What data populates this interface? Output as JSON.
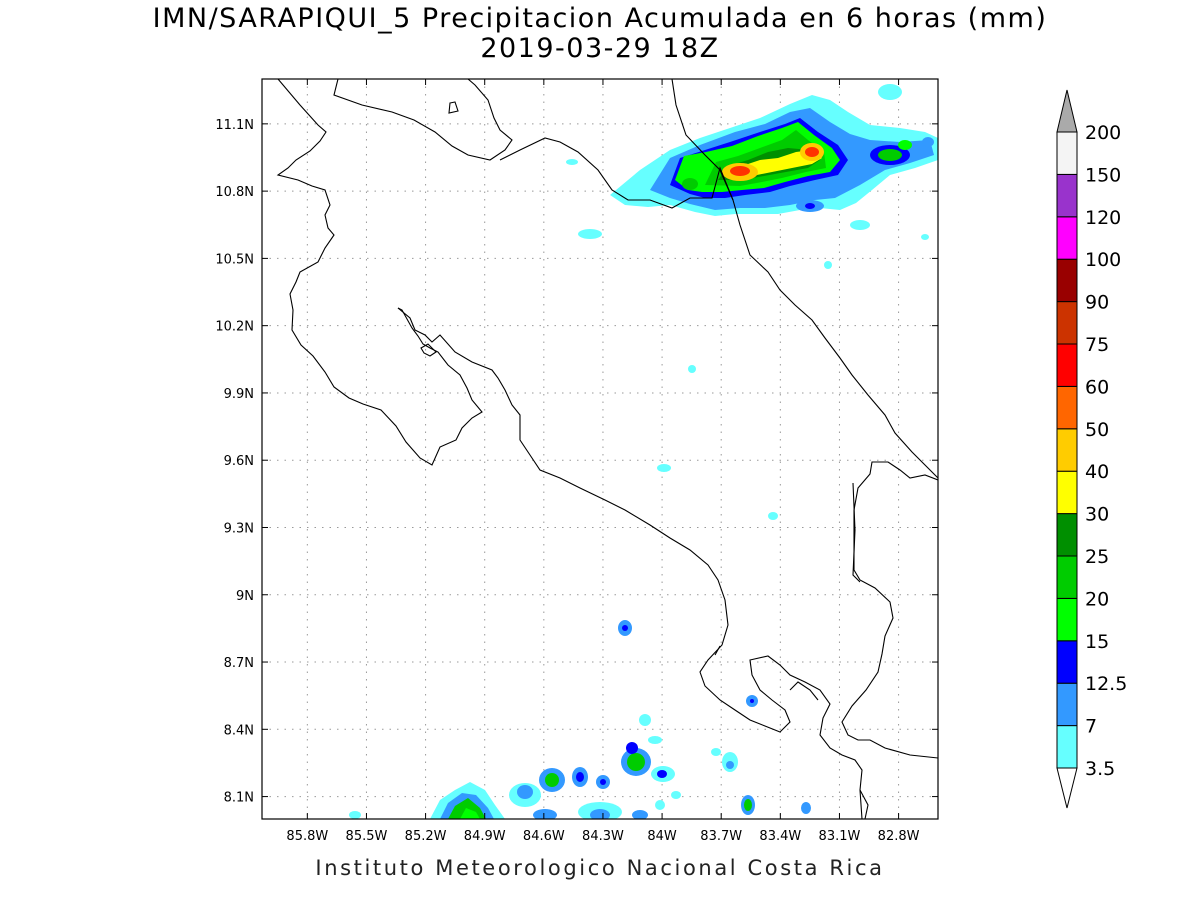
{
  "title": {
    "line1": "IMN/SARAPIQUI_5 Precipitacion Acumulada en 6 horas (mm)",
    "line2": "2019-03-29 18Z"
  },
  "footer": "Instituto Meteorologico Nacional Costa Rica",
  "map": {
    "lon_range": [
      -86.03,
      -82.6
    ],
    "lat_range": [
      8.0,
      11.3
    ],
    "lon_ticks": [
      {
        "value": -85.8,
        "label": "85.8W"
      },
      {
        "value": -85.5,
        "label": "85.5W"
      },
      {
        "value": -85.2,
        "label": "85.2W"
      },
      {
        "value": -84.9,
        "label": "84.9W"
      },
      {
        "value": -84.6,
        "label": "84.6W"
      },
      {
        "value": -84.3,
        "label": "84.3W"
      },
      {
        "value": -84.0,
        "label": "84W"
      },
      {
        "value": -83.7,
        "label": "83.7W"
      },
      {
        "value": -83.4,
        "label": "83.4W"
      },
      {
        "value": -83.1,
        "label": "83.1W"
      },
      {
        "value": -82.8,
        "label": "82.8W"
      }
    ],
    "lat_ticks": [
      {
        "value": 8.1,
        "label": "8.1N"
      },
      {
        "value": 8.4,
        "label": "8.4N"
      },
      {
        "value": 8.7,
        "label": "8.7N"
      },
      {
        "value": 9.0,
        "label": "9N"
      },
      {
        "value": 9.3,
        "label": "9.3N"
      },
      {
        "value": 9.6,
        "label": "9.6N"
      },
      {
        "value": 9.9,
        "label": "9.9N"
      },
      {
        "value": 10.2,
        "label": "10.2N"
      },
      {
        "value": 10.5,
        "label": "10.5N"
      },
      {
        "value": 10.8,
        "label": "10.8N"
      },
      {
        "value": 11.1,
        "label": "11.1N"
      }
    ],
    "grid": "dotted"
  },
  "colorbar": {
    "levels": [
      {
        "label": "3.5",
        "color": "#66ffff"
      },
      {
        "label": "7",
        "color": "#3399ff"
      },
      {
        "label": "12.5",
        "color": "#0000ff"
      },
      {
        "label": "15",
        "color": "#00ff00"
      },
      {
        "label": "20",
        "color": "#00cc00"
      },
      {
        "label": "25",
        "color": "#008f00"
      },
      {
        "label": "30",
        "color": "#ffff00"
      },
      {
        "label": "40",
        "color": "#ffcc00"
      },
      {
        "label": "50",
        "color": "#ff6600"
      },
      {
        "label": "60",
        "color": "#ff0000"
      },
      {
        "label": "75",
        "color": "#cc3300"
      },
      {
        "label": "90",
        "color": "#990000"
      },
      {
        "label": "100",
        "color": "#ff00ff"
      },
      {
        "label": "120",
        "color": "#9933cc"
      },
      {
        "label": "150",
        "color": "#f4f4f4"
      },
      {
        "label": "200",
        "color": "#ffffff"
      }
    ],
    "upper_arrow_color": "#aaaaaa",
    "lower_arrow_color": "#ffffff"
  }
}
